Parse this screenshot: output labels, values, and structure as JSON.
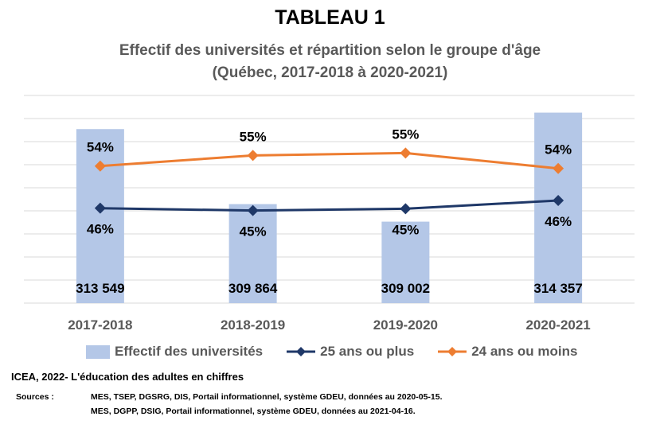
{
  "heading": {
    "title": "TABLEAU 1",
    "subtitle_line1": "Effectif des universités et répartition selon le groupe d'âge",
    "subtitle_line2": "(Québec, 2017-2018 à 2020-2021)"
  },
  "colors": {
    "bar": "#b4c7e7",
    "series_25_plus": "#1f3868",
    "series_24_minus": "#ed7d31",
    "gridline": "#d9d9d9"
  },
  "chart_data": {
    "type": "bar",
    "categories": [
      "2017-2018",
      "2018-2019",
      "2019-2020",
      "2020-2021"
    ],
    "bars": {
      "name": "Effectif des universités",
      "values": [
        313549,
        309864,
        309002,
        314357
      ],
      "labels": [
        "313 549",
        "309 864",
        "309 002",
        "314 357"
      ],
      "ylim": [
        305000,
        315200
      ]
    },
    "series": [
      {
        "name": "25 ans ou plus",
        "values": [
          46,
          45,
          45,
          46
        ],
        "labels": [
          "46%",
          "45%",
          "45%",
          "46%"
        ],
        "marker": "diamond",
        "color": "#1f3868"
      },
      {
        "name": "24 ans ou moins",
        "values": [
          54,
          55,
          55,
          54
        ],
        "labels": [
          "54%",
          "55%",
          "55%",
          "54%"
        ],
        "marker": "diamond",
        "color": "#ed7d31"
      }
    ],
    "grid": true,
    "legend_position": "bottom"
  },
  "footer": {
    "source_title": "ICEA, 2022- L'éducation des adultes en chiffres",
    "sources_label": "Sources :",
    "sources": [
      "MES, TSEP, DGSRG, DIS, Portail informationnel, système GDEU, données au 2020-05-15.",
      "MES, DGPP, DSIG, Portail informationnel, système GDEU, données au 2021-04-16."
    ]
  }
}
